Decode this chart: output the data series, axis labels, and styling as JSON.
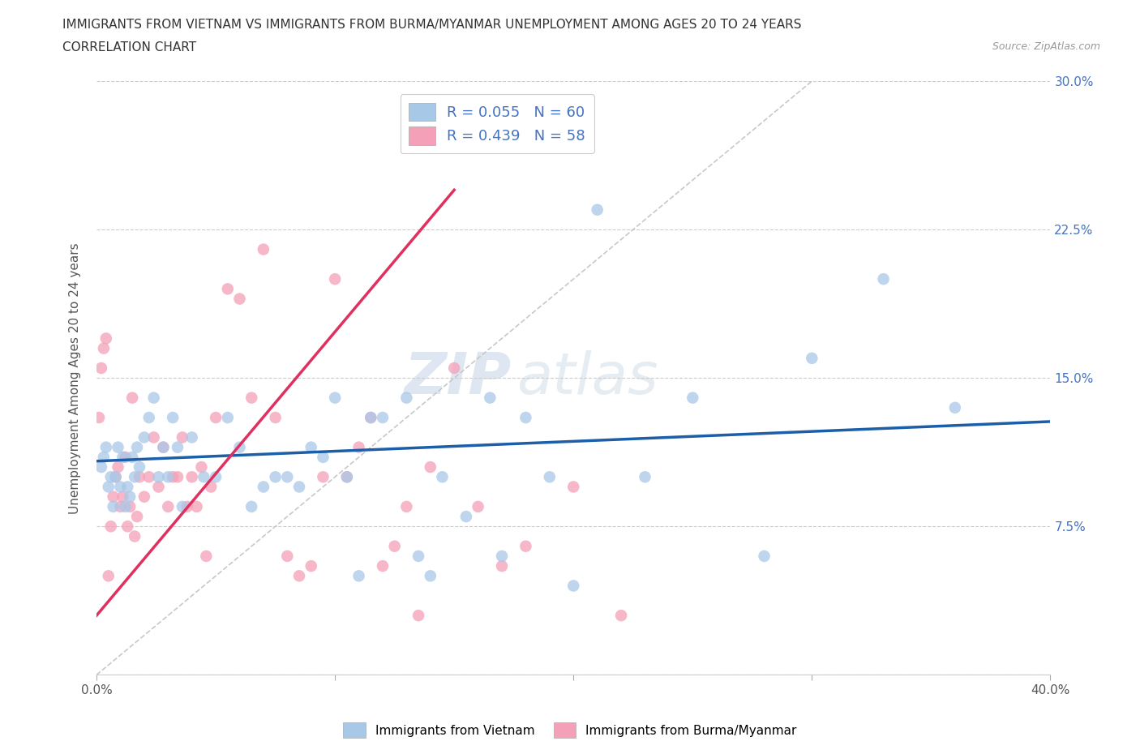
{
  "title_line1": "IMMIGRANTS FROM VIETNAM VS IMMIGRANTS FROM BURMA/MYANMAR UNEMPLOYMENT AMONG AGES 20 TO 24 YEARS",
  "title_line2": "CORRELATION CHART",
  "source_text": "Source: ZipAtlas.com",
  "ylabel": "Unemployment Among Ages 20 to 24 years",
  "xlim": [
    0.0,
    0.4
  ],
  "ylim": [
    0.0,
    0.3
  ],
  "xticks": [
    0.0,
    0.1,
    0.2,
    0.3,
    0.4
  ],
  "xticklabels": [
    "0.0%",
    "",
    "",
    "",
    "40.0%"
  ],
  "yticks": [
    0.0,
    0.075,
    0.15,
    0.225,
    0.3
  ],
  "yticklabels_right": [
    "",
    "7.5%",
    "15.0%",
    "22.5%",
    "30.0%"
  ],
  "legend_r1": "R = 0.055",
  "legend_n1": "N = 60",
  "legend_r2": "R = 0.439",
  "legend_n2": "N = 58",
  "color_vietnam": "#a8c8e8",
  "color_burma": "#f4a0b8",
  "color_trendline_vietnam": "#1a5fa8",
  "color_trendline_burma": "#e03060",
  "color_diagonal": "#c8c8c8",
  "watermark_zip": "ZIP",
  "watermark_atlas": "atlas",
  "vietnam_x": [
    0.002,
    0.003,
    0.004,
    0.005,
    0.006,
    0.007,
    0.008,
    0.009,
    0.01,
    0.011,
    0.012,
    0.013,
    0.014,
    0.015,
    0.016,
    0.017,
    0.018,
    0.02,
    0.022,
    0.024,
    0.026,
    0.028,
    0.03,
    0.032,
    0.034,
    0.036,
    0.04,
    0.045,
    0.05,
    0.055,
    0.06,
    0.065,
    0.07,
    0.075,
    0.08,
    0.085,
    0.09,
    0.095,
    0.1,
    0.105,
    0.11,
    0.115,
    0.12,
    0.13,
    0.135,
    0.14,
    0.145,
    0.155,
    0.165,
    0.17,
    0.18,
    0.19,
    0.2,
    0.21,
    0.23,
    0.25,
    0.28,
    0.3,
    0.33,
    0.36
  ],
  "vietnam_y": [
    0.105,
    0.11,
    0.115,
    0.095,
    0.1,
    0.085,
    0.1,
    0.115,
    0.095,
    0.11,
    0.085,
    0.095,
    0.09,
    0.11,
    0.1,
    0.115,
    0.105,
    0.12,
    0.13,
    0.14,
    0.1,
    0.115,
    0.1,
    0.13,
    0.115,
    0.085,
    0.12,
    0.1,
    0.1,
    0.13,
    0.115,
    0.085,
    0.095,
    0.1,
    0.1,
    0.095,
    0.115,
    0.11,
    0.14,
    0.1,
    0.05,
    0.13,
    0.13,
    0.14,
    0.06,
    0.05,
    0.1,
    0.08,
    0.14,
    0.06,
    0.13,
    0.1,
    0.045,
    0.235,
    0.1,
    0.14,
    0.06,
    0.16,
    0.2,
    0.135
  ],
  "burma_x": [
    0.001,
    0.002,
    0.003,
    0.004,
    0.005,
    0.006,
    0.007,
    0.008,
    0.009,
    0.01,
    0.011,
    0.012,
    0.013,
    0.014,
    0.015,
    0.016,
    0.017,
    0.018,
    0.02,
    0.022,
    0.024,
    0.026,
    0.028,
    0.03,
    0.032,
    0.034,
    0.036,
    0.038,
    0.04,
    0.042,
    0.044,
    0.046,
    0.048,
    0.05,
    0.055,
    0.06,
    0.065,
    0.07,
    0.075,
    0.08,
    0.085,
    0.09,
    0.095,
    0.1,
    0.105,
    0.11,
    0.115,
    0.12,
    0.125,
    0.13,
    0.135,
    0.14,
    0.15,
    0.16,
    0.17,
    0.18,
    0.2,
    0.22
  ],
  "burma_y": [
    0.13,
    0.155,
    0.165,
    0.17,
    0.05,
    0.075,
    0.09,
    0.1,
    0.105,
    0.085,
    0.09,
    0.11,
    0.075,
    0.085,
    0.14,
    0.07,
    0.08,
    0.1,
    0.09,
    0.1,
    0.12,
    0.095,
    0.115,
    0.085,
    0.1,
    0.1,
    0.12,
    0.085,
    0.1,
    0.085,
    0.105,
    0.06,
    0.095,
    0.13,
    0.195,
    0.19,
    0.14,
    0.215,
    0.13,
    0.06,
    0.05,
    0.055,
    0.1,
    0.2,
    0.1,
    0.115,
    0.13,
    0.055,
    0.065,
    0.085,
    0.03,
    0.105,
    0.155,
    0.085,
    0.055,
    0.065,
    0.095,
    0.03
  ],
  "burma_trendline_x0": 0.0,
  "burma_trendline_x1": 0.15,
  "burma_trendline_y0": 0.03,
  "burma_trendline_y1": 0.245,
  "vietnam_trendline_x0": 0.0,
  "vietnam_trendline_x1": 0.4,
  "vietnam_trendline_y0": 0.108,
  "vietnam_trendline_y1": 0.128
}
